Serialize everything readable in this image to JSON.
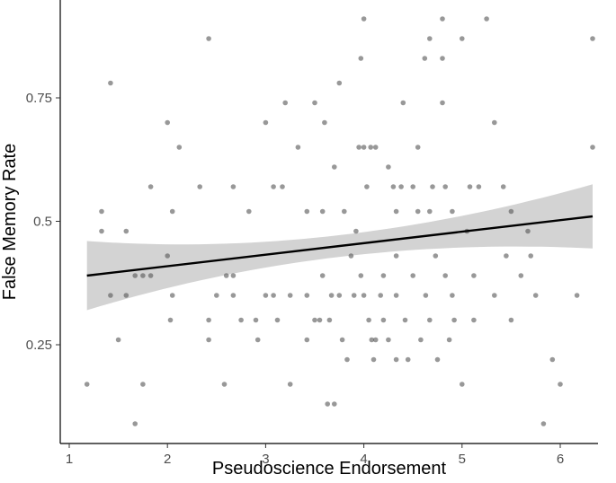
{
  "chart_data": {
    "type": "scatter",
    "xlabel": "Pseudoscience Endorsement",
    "ylabel": "False Memory Rate",
    "xlim": [
      1.0,
      6.45
    ],
    "ylim": [
      0.03,
      0.93
    ],
    "x_ticks": [
      1,
      2,
      3,
      4,
      5,
      6
    ],
    "x_tick_labels": [
      "1",
      "2",
      "3",
      "4",
      "5",
      "6"
    ],
    "y_ticks": [
      0.25,
      0.5,
      0.75
    ],
    "y_tick_labels": [
      "0.25",
      "0.5",
      "0.75"
    ],
    "grid": false,
    "point_color": "#595959",
    "line_color": "#000000",
    "band_color": "#d3d3d3",
    "regression": {
      "x": [
        1.18,
        6.33
      ],
      "y": [
        0.39,
        0.51
      ],
      "ci_lower": [
        0.32,
        0.445
      ],
      "ci_upper": [
        0.46,
        0.575
      ]
    },
    "points": [
      [
        1.18,
        0.17
      ],
      [
        1.33,
        0.52
      ],
      [
        1.33,
        0.48
      ],
      [
        1.42,
        0.78
      ],
      [
        1.42,
        0.35
      ],
      [
        1.5,
        0.26
      ],
      [
        1.58,
        0.48
      ],
      [
        1.58,
        0.35
      ],
      [
        1.67,
        0.09
      ],
      [
        1.67,
        0.39
      ],
      [
        1.75,
        0.39
      ],
      [
        1.75,
        0.17
      ],
      [
        1.83,
        0.57
      ],
      [
        1.83,
        0.39
      ],
      [
        2.0,
        0.7
      ],
      [
        2.0,
        0.43
      ],
      [
        2.03,
        0.3
      ],
      [
        2.05,
        0.52
      ],
      [
        2.05,
        0.35
      ],
      [
        2.12,
        0.65
      ],
      [
        2.33,
        0.57
      ],
      [
        2.42,
        0.87
      ],
      [
        2.42,
        0.3
      ],
      [
        2.42,
        0.26
      ],
      [
        2.5,
        0.35
      ],
      [
        2.58,
        0.17
      ],
      [
        2.6,
        0.39
      ],
      [
        2.67,
        0.57
      ],
      [
        2.67,
        0.39
      ],
      [
        2.67,
        0.35
      ],
      [
        2.75,
        0.3
      ],
      [
        2.83,
        0.52
      ],
      [
        2.9,
        0.3
      ],
      [
        2.92,
        0.26
      ],
      [
        3.0,
        0.7
      ],
      [
        3.0,
        0.35
      ],
      [
        3.08,
        0.57
      ],
      [
        3.08,
        0.35
      ],
      [
        3.12,
        0.3
      ],
      [
        3.17,
        0.57
      ],
      [
        3.2,
        0.74
      ],
      [
        3.25,
        0.17
      ],
      [
        3.25,
        0.35
      ],
      [
        3.33,
        0.65
      ],
      [
        3.42,
        0.52
      ],
      [
        3.42,
        0.35
      ],
      [
        3.42,
        0.26
      ],
      [
        3.5,
        0.3
      ],
      [
        3.5,
        0.74
      ],
      [
        3.55,
        0.3
      ],
      [
        3.58,
        0.52
      ],
      [
        3.58,
        0.39
      ],
      [
        3.6,
        0.7
      ],
      [
        3.63,
        0.13
      ],
      [
        3.65,
        0.3
      ],
      [
        3.67,
        0.35
      ],
      [
        3.7,
        0.61
      ],
      [
        3.7,
        0.13
      ],
      [
        3.75,
        0.78
      ],
      [
        3.75,
        0.35
      ],
      [
        3.78,
        0.26
      ],
      [
        3.8,
        0.52
      ],
      [
        3.83,
        0.22
      ],
      [
        3.87,
        0.43
      ],
      [
        3.9,
        0.35
      ],
      [
        3.92,
        0.48
      ],
      [
        3.95,
        0.65
      ],
      [
        3.97,
        0.83
      ],
      [
        3.97,
        0.39
      ],
      [
        4.0,
        0.91
      ],
      [
        4.0,
        0.65
      ],
      [
        4.0,
        0.35
      ],
      [
        4.03,
        0.57
      ],
      [
        4.05,
        0.3
      ],
      [
        4.07,
        0.65
      ],
      [
        4.08,
        0.26
      ],
      [
        4.1,
        0.22
      ],
      [
        4.12,
        0.65
      ],
      [
        4.12,
        0.26
      ],
      [
        4.17,
        0.35
      ],
      [
        4.2,
        0.39
      ],
      [
        4.2,
        0.3
      ],
      [
        4.25,
        0.61
      ],
      [
        4.25,
        0.26
      ],
      [
        4.3,
        0.57
      ],
      [
        4.33,
        0.52
      ],
      [
        4.33,
        0.43
      ],
      [
        4.33,
        0.35
      ],
      [
        4.33,
        0.22
      ],
      [
        4.38,
        0.57
      ],
      [
        4.4,
        0.74
      ],
      [
        4.42,
        0.3
      ],
      [
        4.45,
        0.22
      ],
      [
        4.5,
        0.57
      ],
      [
        4.5,
        0.39
      ],
      [
        4.55,
        0.65
      ],
      [
        4.55,
        0.52
      ],
      [
        4.58,
        0.26
      ],
      [
        4.62,
        0.83
      ],
      [
        4.63,
        0.35
      ],
      [
        4.67,
        0.87
      ],
      [
        4.67,
        0.52
      ],
      [
        4.67,
        0.3
      ],
      [
        4.7,
        0.57
      ],
      [
        4.73,
        0.43
      ],
      [
        4.75,
        0.22
      ],
      [
        4.8,
        0.91
      ],
      [
        4.8,
        0.83
      ],
      [
        4.8,
        0.74
      ],
      [
        4.83,
        0.57
      ],
      [
        4.83,
        0.39
      ],
      [
        4.87,
        0.26
      ],
      [
        4.9,
        0.52
      ],
      [
        4.9,
        0.35
      ],
      [
        4.92,
        0.3
      ],
      [
        5.0,
        0.87
      ],
      [
        5.0,
        0.17
      ],
      [
        5.05,
        0.48
      ],
      [
        5.08,
        0.57
      ],
      [
        5.12,
        0.39
      ],
      [
        5.12,
        0.3
      ],
      [
        5.17,
        0.57
      ],
      [
        5.25,
        0.91
      ],
      [
        5.33,
        0.7
      ],
      [
        5.33,
        0.35
      ],
      [
        5.42,
        0.57
      ],
      [
        5.45,
        0.43
      ],
      [
        5.5,
        0.52
      ],
      [
        5.5,
        0.3
      ],
      [
        5.6,
        0.39
      ],
      [
        5.67,
        0.48
      ],
      [
        5.7,
        0.43
      ],
      [
        5.75,
        0.35
      ],
      [
        5.83,
        0.09
      ],
      [
        5.92,
        0.22
      ],
      [
        6.0,
        0.17
      ],
      [
        6.17,
        0.35
      ],
      [
        6.33,
        0.87
      ],
      [
        6.33,
        0.65
      ]
    ]
  }
}
